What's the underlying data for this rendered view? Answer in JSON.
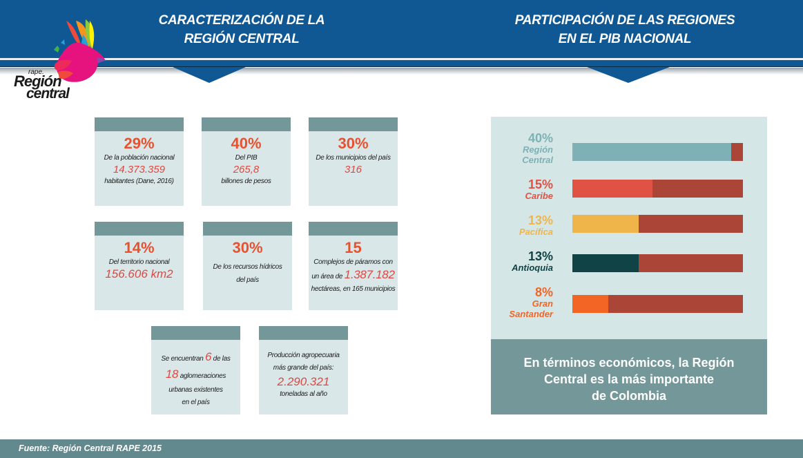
{
  "header": {
    "left_title_line1": "CARACTERIZACIÓN DE LA",
    "left_title_line2": "REGIÓN CENTRAL",
    "right_title_line1": "PARTICIPACIÓN DE LAS REGIONES",
    "right_title_line2": "EN EL PIB NACIONAL",
    "color": "#0f5894"
  },
  "logo": {
    "small": "rape.",
    "line1": "Región",
    "line2": "central",
    "icon": "dove-logo-icon"
  },
  "cards": [
    {
      "big": "29%",
      "lines": [
        "De la población nacional"
      ],
      "value": "14.373.359",
      "after": "habitantes  (Dane, 2016)"
    },
    {
      "big": "40%",
      "lines": [
        "Del PIB"
      ],
      "value": "265,8",
      "after": "billones de pesos"
    },
    {
      "big": "30%",
      "lines": [
        "De los municipios del país"
      ],
      "value": "316",
      "after": ""
    },
    {
      "big": "14%",
      "lines": [
        "Del territorio nacional"
      ],
      "value": "156.606 km2",
      "after": ""
    },
    {
      "big": "30%",
      "lines": [
        "De los recursos hídricos",
        "del país"
      ],
      "value": "",
      "after": ""
    },
    {
      "big": "15",
      "lines": [
        "Complejos de páramos con"
      ],
      "inline_pre": "un área de ",
      "inline_val": "1.387.182",
      "after": "hectáreas, en 165  municipios"
    },
    {
      "pre1": "Se encuentran ",
      "num1": "6",
      "post1": " de las",
      "num2": "18",
      "post2": " aglomeraciones",
      "line3": "urbanas existentes",
      "line4": "en el país"
    },
    {
      "lines": [
        "Producción agropecuaria",
        "más grande del país:"
      ],
      "value": "2.290.321",
      "after": "toneladas al año"
    }
  ],
  "chart_data": {
    "type": "bar",
    "orientation": "horizontal",
    "title": "PARTICIPACIÓN DE LAS REGIONES EN EL PIB NACIONAL",
    "categories": [
      "Región Central",
      "Caribe",
      "Pacífica",
      "Antioquia",
      "Gran Santander"
    ],
    "values": [
      40,
      15,
      13,
      13,
      8
    ],
    "labels": [
      "40%",
      "15%",
      "13%",
      "13%",
      "8%"
    ],
    "label_names": [
      [
        "Región",
        "Central"
      ],
      [
        "Caribe"
      ],
      [
        "Pacífica"
      ],
      [
        "Antioquia"
      ],
      [
        "Gran",
        "Santander"
      ]
    ],
    "fill_fraction_shown": [
      0.93,
      0.47,
      0.39,
      0.39,
      0.21
    ],
    "colors": [
      "#7eb1b5",
      "#e05244",
      "#f0b54a",
      "#0f4345",
      "#f26524"
    ],
    "label_colors": [
      "#7eb1b5",
      "#e05244",
      "#f0b54a",
      "#0f4345",
      "#f26524"
    ],
    "track_color": "#ab4538",
    "xlabel": "",
    "ylabel": "",
    "grid": false,
    "legend": "none"
  },
  "panel": {
    "conclusion_line1": "En términos económicos, la Región",
    "conclusion_line2": "Central es la más importante",
    "conclusion_line3": "de Colombia"
  },
  "footer": {
    "source": "Fuente:  Región Central RAPE 2015"
  }
}
